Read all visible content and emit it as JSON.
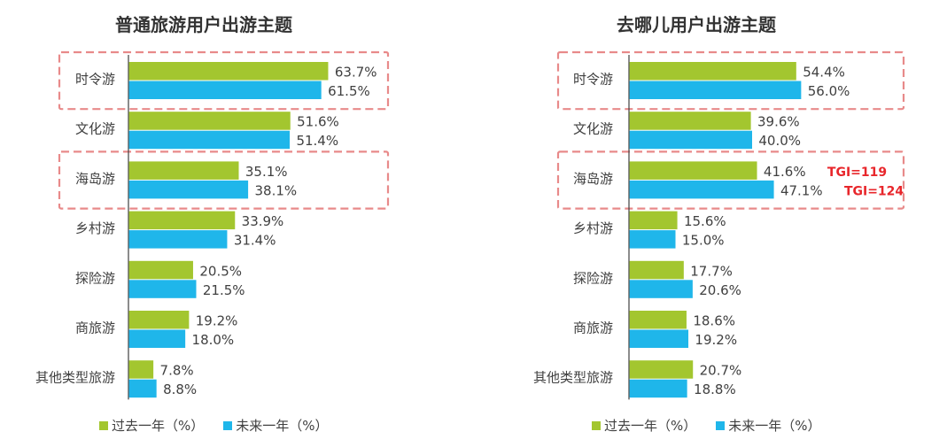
{
  "chart_data": [
    {
      "type": "bar",
      "orientation": "horizontal",
      "title": "普通旅游用户出游主题",
      "categories": [
        "时令游",
        "文化游",
        "海岛游",
        "乡村游",
        "探险游",
        "商旅游",
        "其他类型旅游"
      ],
      "series": [
        {
          "name": "过去一年（%）",
          "color": "#a3c62f",
          "values": [
            63.7,
            51.6,
            35.1,
            33.9,
            20.5,
            19.2,
            7.8
          ],
          "labels": [
            "63.7%",
            "51.6%",
            "35.1%",
            "33.9%",
            "20.5%",
            "19.2%",
            "7.8%"
          ]
        },
        {
          "name": "未来一年（%）",
          "color": "#1fb6ea",
          "values": [
            61.5,
            51.4,
            38.1,
            31.4,
            21.5,
            18.0,
            8.8
          ],
          "labels": [
            "61.5%",
            "51.4%",
            "38.1%",
            "31.4%",
            "21.5%",
            "18.0%",
            "8.8%"
          ]
        }
      ],
      "highlighted_categories": [
        "时令游",
        "海岛游"
      ],
      "annotations": []
    },
    {
      "type": "bar",
      "orientation": "horizontal",
      "title": "去哪儿用户出游主题",
      "categories": [
        "时令游",
        "文化游",
        "海岛游",
        "乡村游",
        "探险游",
        "商旅游",
        "其他类型旅游"
      ],
      "series": [
        {
          "name": "过去一年（%）",
          "color": "#a3c62f",
          "values": [
            54.4,
            39.6,
            41.6,
            15.6,
            17.7,
            18.6,
            20.7
          ],
          "labels": [
            "54.4%",
            "39.6%",
            "41.6%",
            "15.6%",
            "17.7%",
            "18.6%",
            "20.7%"
          ]
        },
        {
          "name": "未来一年（%）",
          "color": "#1fb6ea",
          "values": [
            56.0,
            40.0,
            47.1,
            15.0,
            20.6,
            19.2,
            18.8
          ],
          "labels": [
            "56.0%",
            "40.0%",
            "47.1%",
            "15.0%",
            "20.6%",
            "19.2%",
            "18.8%"
          ]
        }
      ],
      "highlighted_categories": [
        "时令游",
        "海岛游"
      ],
      "annotations": [
        {
          "category": "海岛游",
          "series": 0,
          "text": "TGI=119"
        },
        {
          "category": "海岛游",
          "series": 1,
          "text": "TGI=124"
        }
      ]
    }
  ],
  "colors": {
    "highlight_border": "#e88a8a",
    "axis": "#404040"
  }
}
